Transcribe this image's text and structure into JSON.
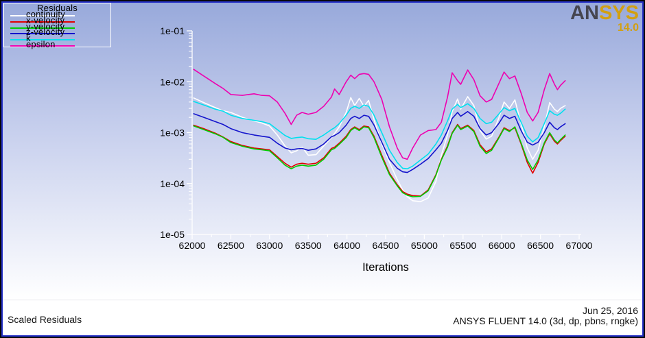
{
  "window": {
    "border_outer_color": "#050508",
    "border_inner_color": "#2531c8"
  },
  "canvas": {
    "bg_top": "#98a9db",
    "bg_mid": "#c9d1ee",
    "bg_bottom": "#ffffff"
  },
  "logo": {
    "brand_dark": "AN",
    "brand_gold": "SYS",
    "version": "14.0",
    "dark_color": "#45454f",
    "gold_color": "#d2a012"
  },
  "legend": {
    "title": "Residuals",
    "items": [
      {
        "label": "continuity",
        "color": "#ffffff"
      },
      {
        "label": "x-velocity",
        "color": "#e00000"
      },
      {
        "label": "y-velocity",
        "color": "#00cc00"
      },
      {
        "label": "z-velocity",
        "color": "#1414cc"
      },
      {
        "label": "k",
        "color": "#00e0ee"
      },
      {
        "label": "epsilon",
        "color": "#ee00b0"
      }
    ]
  },
  "footer": {
    "left_title": "Scaled Residuals",
    "date": "Jun 25, 2016",
    "app_info": "ANSYS FLUENT 14.0 (3d, dp, pbns, rngke)"
  },
  "chart_data": {
    "type": "line",
    "title": "Scaled Residuals",
    "xlabel": "Iterations",
    "ylabel": "",
    "log_y": true,
    "legend_position": "top-left",
    "axis_color": "#ffffff",
    "x_range": [
      62000,
      67000
    ],
    "y_exp_range": [
      -5,
      -1
    ],
    "x_major_ticks": [
      62000,
      62500,
      63000,
      63500,
      64000,
      64500,
      65000,
      65500,
      66000,
      66500,
      67000
    ],
    "x_minor_step": 250,
    "y_ticks": [
      {
        "exp": -1,
        "label": "1e-01"
      },
      {
        "exp": -2,
        "label": "1e-02"
      },
      {
        "exp": -3,
        "label": "1e-03"
      },
      {
        "exp": -4,
        "label": "1e-04"
      },
      {
        "exp": -5,
        "label": "1e-05"
      }
    ],
    "x": [
      62020,
      62150,
      62300,
      62500,
      62650,
      62800,
      62900,
      63000,
      63100,
      63200,
      63280,
      63350,
      63420,
      63500,
      63600,
      63700,
      63800,
      63840,
      63900,
      63990,
      64050,
      64100,
      64160,
      64220,
      64280,
      64350,
      64450,
      64550,
      64650,
      64720,
      64780,
      64850,
      64950,
      65050,
      65150,
      65220,
      65300,
      65360,
      65430,
      65470,
      65560,
      65640,
      65720,
      65800,
      65870,
      65960,
      66030,
      66100,
      66170,
      66250,
      66330,
      66400,
      66470,
      66550,
      66620,
      66680,
      66720,
      66760,
      66820
    ],
    "series": [
      {
        "name": "continuity",
        "color": "#ffffff",
        "values": [
          0.0048,
          0.0039,
          0.0031,
          0.0025,
          0.002,
          0.0017,
          0.00155,
          0.00135,
          0.0009,
          0.00055,
          0.0004,
          0.00044,
          0.00052,
          0.00036,
          0.00037,
          0.00055,
          0.0008,
          0.00096,
          0.0013,
          0.0025,
          0.0049,
          0.0034,
          0.0047,
          0.0033,
          0.0043,
          0.0018,
          0.0006,
          0.00026,
          0.00012,
          7.5e-05,
          5.5e-05,
          4.6e-05,
          4.4e-05,
          5.2e-05,
          0.00011,
          0.00036,
          0.0009,
          0.0026,
          0.0046,
          0.0029,
          0.0051,
          0.0034,
          0.0011,
          0.00075,
          0.00085,
          0.0019,
          0.004,
          0.003,
          0.0044,
          0.0015,
          0.0005,
          0.0003,
          0.00045,
          0.0013,
          0.0039,
          0.0029,
          0.0026,
          0.003,
          0.0034
        ]
      },
      {
        "name": "x-velocity",
        "color": "#e00000",
        "values": [
          0.0014,
          0.0012,
          0.00098,
          0.00067,
          0.00056,
          0.0005,
          0.00048,
          0.00046,
          0.00034,
          0.00025,
          0.00021,
          0.00024,
          0.00025,
          0.00024,
          0.00025,
          0.00032,
          0.00049,
          0.00052,
          0.00062,
          0.00085,
          0.00115,
          0.0013,
          0.00115,
          0.00135,
          0.0013,
          0.00085,
          0.00036,
          0.00016,
          9.5e-05,
          7e-05,
          6.2e-05,
          5.8e-05,
          5.7e-05,
          7.5e-05,
          0.00015,
          0.0003,
          0.00055,
          0.001,
          0.00145,
          0.0012,
          0.0014,
          0.0011,
          0.00058,
          0.00042,
          0.00048,
          0.0008,
          0.00125,
          0.0011,
          0.00125,
          0.0006,
          0.00026,
          0.00016,
          0.00026,
          0.0006,
          0.00095,
          0.00068,
          0.0006,
          0.0007,
          0.00085
        ]
      },
      {
        "name": "y-velocity",
        "color": "#00cc00",
        "values": [
          0.00135,
          0.00115,
          0.00095,
          0.00064,
          0.00054,
          0.00048,
          0.00046,
          0.00044,
          0.00032,
          0.00023,
          0.000195,
          0.00022,
          0.00023,
          0.00022,
          0.00023,
          0.0003,
          0.00046,
          0.00049,
          0.00059,
          0.0008,
          0.0011,
          0.00125,
          0.0011,
          0.0013,
          0.00125,
          0.0008,
          0.00033,
          0.00015,
          9e-05,
          6.6e-05,
          5.9e-05,
          5.5e-05,
          5.6e-05,
          7.2e-05,
          0.000145,
          0.00029,
          0.00052,
          0.00097,
          0.0014,
          0.00115,
          0.00135,
          0.00105,
          0.00054,
          0.00039,
          0.00045,
          0.00077,
          0.0012,
          0.00105,
          0.0013,
          0.00063,
          0.00029,
          0.00019,
          0.00029,
          0.00063,
          0.001,
          0.00072,
          0.00063,
          0.00073,
          0.0009
        ]
      },
      {
        "name": "z-velocity",
        "color": "#1414cc",
        "values": [
          0.00235,
          0.002,
          0.00165,
          0.0012,
          0.001,
          0.0009,
          0.00085,
          0.00081,
          0.00062,
          0.0005,
          0.00046,
          0.00048,
          0.00049,
          0.00045,
          0.00048,
          0.0006,
          0.00083,
          0.00088,
          0.001,
          0.0014,
          0.0019,
          0.0021,
          0.0019,
          0.0022,
          0.0021,
          0.0014,
          0.00065,
          0.0003,
          0.0002,
          0.00017,
          0.000165,
          0.00019,
          0.00024,
          0.00031,
          0.00046,
          0.00062,
          0.0011,
          0.0019,
          0.0025,
          0.0021,
          0.0026,
          0.0021,
          0.0012,
          0.0009,
          0.001,
          0.0015,
          0.0022,
          0.0019,
          0.0021,
          0.0011,
          0.00065,
          0.00057,
          0.00065,
          0.001,
          0.0016,
          0.00125,
          0.00115,
          0.0013,
          0.0015
        ]
      },
      {
        "name": "k",
        "color": "#00e0ee",
        "values": [
          0.0041,
          0.0035,
          0.0029,
          0.0022,
          0.0019,
          0.00175,
          0.00165,
          0.0015,
          0.00115,
          0.00088,
          0.00077,
          0.0008,
          0.00082,
          0.00076,
          0.00074,
          0.0009,
          0.00115,
          0.00125,
          0.0015,
          0.0022,
          0.003,
          0.0033,
          0.003,
          0.0035,
          0.0033,
          0.0022,
          0.001,
          0.00045,
          0.00026,
          0.0002,
          0.000195,
          0.00022,
          0.00029,
          0.00038,
          0.0006,
          0.0009,
          0.0017,
          0.0029,
          0.0036,
          0.0031,
          0.0037,
          0.003,
          0.0019,
          0.0015,
          0.0016,
          0.0023,
          0.0031,
          0.0027,
          0.003,
          0.0016,
          0.00085,
          0.00066,
          0.0008,
          0.0015,
          0.0027,
          0.0023,
          0.0022,
          0.0024,
          0.0029
        ]
      },
      {
        "name": "epsilon",
        "color": "#ee00b0",
        "values": [
          0.0175,
          0.013,
          0.0092,
          0.0056,
          0.0054,
          0.0058,
          0.0054,
          0.0053,
          0.004,
          0.0024,
          0.00145,
          0.0022,
          0.0025,
          0.0023,
          0.0025,
          0.0033,
          0.005,
          0.0072,
          0.0056,
          0.01,
          0.0135,
          0.0115,
          0.014,
          0.0145,
          0.014,
          0.01,
          0.0045,
          0.0013,
          0.0005,
          0.00032,
          0.0003,
          0.0005,
          0.0009,
          0.0011,
          0.00115,
          0.0016,
          0.005,
          0.015,
          0.0105,
          0.0089,
          0.017,
          0.011,
          0.0053,
          0.004,
          0.0045,
          0.009,
          0.0155,
          0.0115,
          0.013,
          0.006,
          0.0025,
          0.0017,
          0.0025,
          0.007,
          0.0145,
          0.009,
          0.007,
          0.0085,
          0.0105
        ]
      }
    ]
  }
}
